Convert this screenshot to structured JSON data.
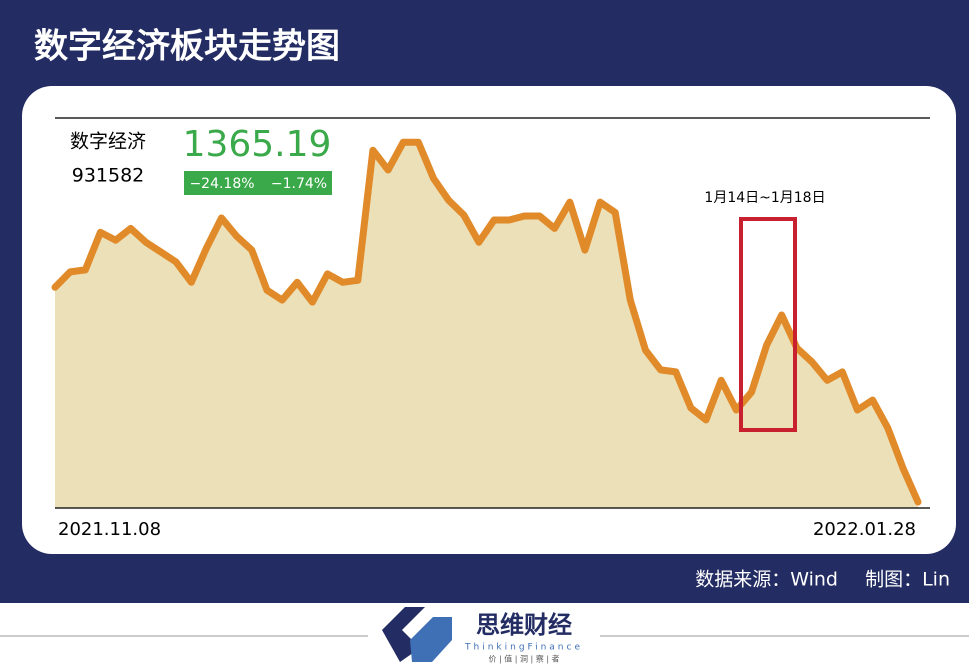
{
  "header": {
    "title": "数字经济板块走势图"
  },
  "stats": {
    "name": "数字经济",
    "code": "931582",
    "value": 1365.19,
    "changes": [
      "−24.18%",
      "−1.74%"
    ]
  },
  "chart_data": {
    "type": "area",
    "color": "#e08a2a",
    "fill": "#ece0b8",
    "categories": [
      "2021.11.08",
      null,
      null,
      null,
      null,
      null,
      null,
      null,
      null,
      null,
      null,
      null,
      null,
      null,
      null,
      null,
      null,
      null,
      null,
      null,
      null,
      null,
      null,
      null,
      null,
      null,
      null,
      null,
      null,
      null,
      null,
      null,
      null,
      null,
      null,
      null,
      null,
      null,
      null,
      null,
      null,
      null,
      null,
      null,
      null,
      null,
      null,
      null,
      null,
      null,
      null,
      null,
      null,
      null,
      null,
      null,
      null,
      "2022.01.28"
    ],
    "values": [
      1799,
      1830,
      1834,
      1910,
      1894,
      1918,
      1890,
      1870,
      1850,
      1809,
      1878,
      1939,
      1902,
      1874,
      1793,
      1773,
      1809,
      1769,
      1826,
      1809,
      1813,
      2076,
      2036,
      2092,
      2092,
      2019,
      1975,
      1945,
      1890,
      1935,
      1935,
      1943,
      1943,
      1918,
      1971,
      1874,
      1971,
      1950,
      1773,
      1672,
      1632,
      1628,
      1555,
      1531,
      1611,
      1551,
      1587,
      1682,
      1743,
      1676,
      1648,
      1611,
      1628,
      1551,
      1571,
      1515,
      1434,
      1365.19
    ],
    "ylim": [
      1353,
      2141
    ],
    "annotation": "1月14日~1月18日"
  },
  "footer": {
    "source": "数据来源：Wind",
    "author": "制图：Lin",
    "brand": "思维财经",
    "brand_en": "ThinkingFinance",
    "slogan": "价 | 值 | 洞 | 察 | 者"
  }
}
